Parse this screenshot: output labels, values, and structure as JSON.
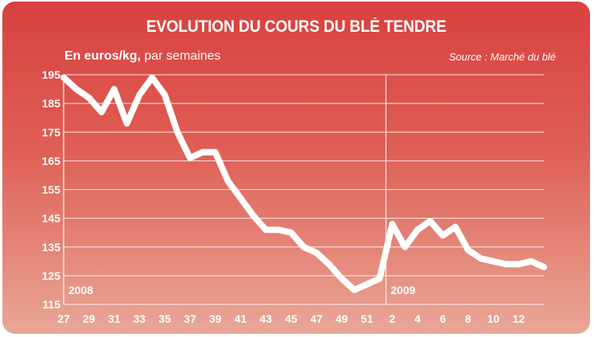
{
  "header": {
    "title": "EVOLUTION DU COURS DU BLÉ TENDRE",
    "unit_bold": "En euros/kg,",
    "unit_rest": " par semaines",
    "source": "Source : Marché du blé"
  },
  "colors": {
    "background_top": "#d8413f",
    "background_bottom": "#e9a797",
    "line": "#ffffff",
    "grid": "#ffffff",
    "text": "#ffffff"
  },
  "chart_data": {
    "type": "line",
    "title": "EVOLUTION DU COURS DU BLÉ TENDRE",
    "subtitle": "En euros/kg, par semaines",
    "xlabel": "",
    "ylabel": "",
    "ylim": [
      115,
      195
    ],
    "yticks": [
      195,
      185,
      175,
      165,
      155,
      145,
      135,
      125,
      115
    ],
    "x_ticks": [
      "27",
      "29",
      "31",
      "33",
      "35",
      "37",
      "39",
      "41",
      "43",
      "45",
      "47",
      "49",
      "51",
      "2",
      "4",
      "6",
      "8",
      "10",
      "12"
    ],
    "year_labels": [
      {
        "text": "2008",
        "at_week_index": 0
      },
      {
        "text": "2009",
        "at_week_index": 26
      }
    ],
    "year_divider_index": 26,
    "grid": true,
    "legend": "none",
    "series": [
      {
        "weeks": [
          "27",
          "28",
          "29",
          "30",
          "31",
          "32",
          "33",
          "34",
          "35",
          "36",
          "37",
          "38",
          "39",
          "40",
          "41",
          "42",
          "43",
          "44",
          "45",
          "46",
          "47",
          "48",
          "49",
          "50",
          "51",
          "52",
          "1",
          "2",
          "3",
          "4",
          "5",
          "6",
          "7",
          "8",
          "9",
          "10",
          "11",
          "12",
          "13"
        ],
        "values": [
          194,
          190,
          187,
          182,
          190,
          178,
          188,
          194,
          188,
          175,
          166,
          168,
          168,
          158,
          152,
          146,
          141,
          141,
          140,
          135,
          133,
          129,
          124,
          120,
          122,
          124,
          143,
          135,
          141,
          144,
          139,
          142,
          134,
          131,
          130,
          129,
          129,
          130,
          128
        ]
      }
    ]
  }
}
